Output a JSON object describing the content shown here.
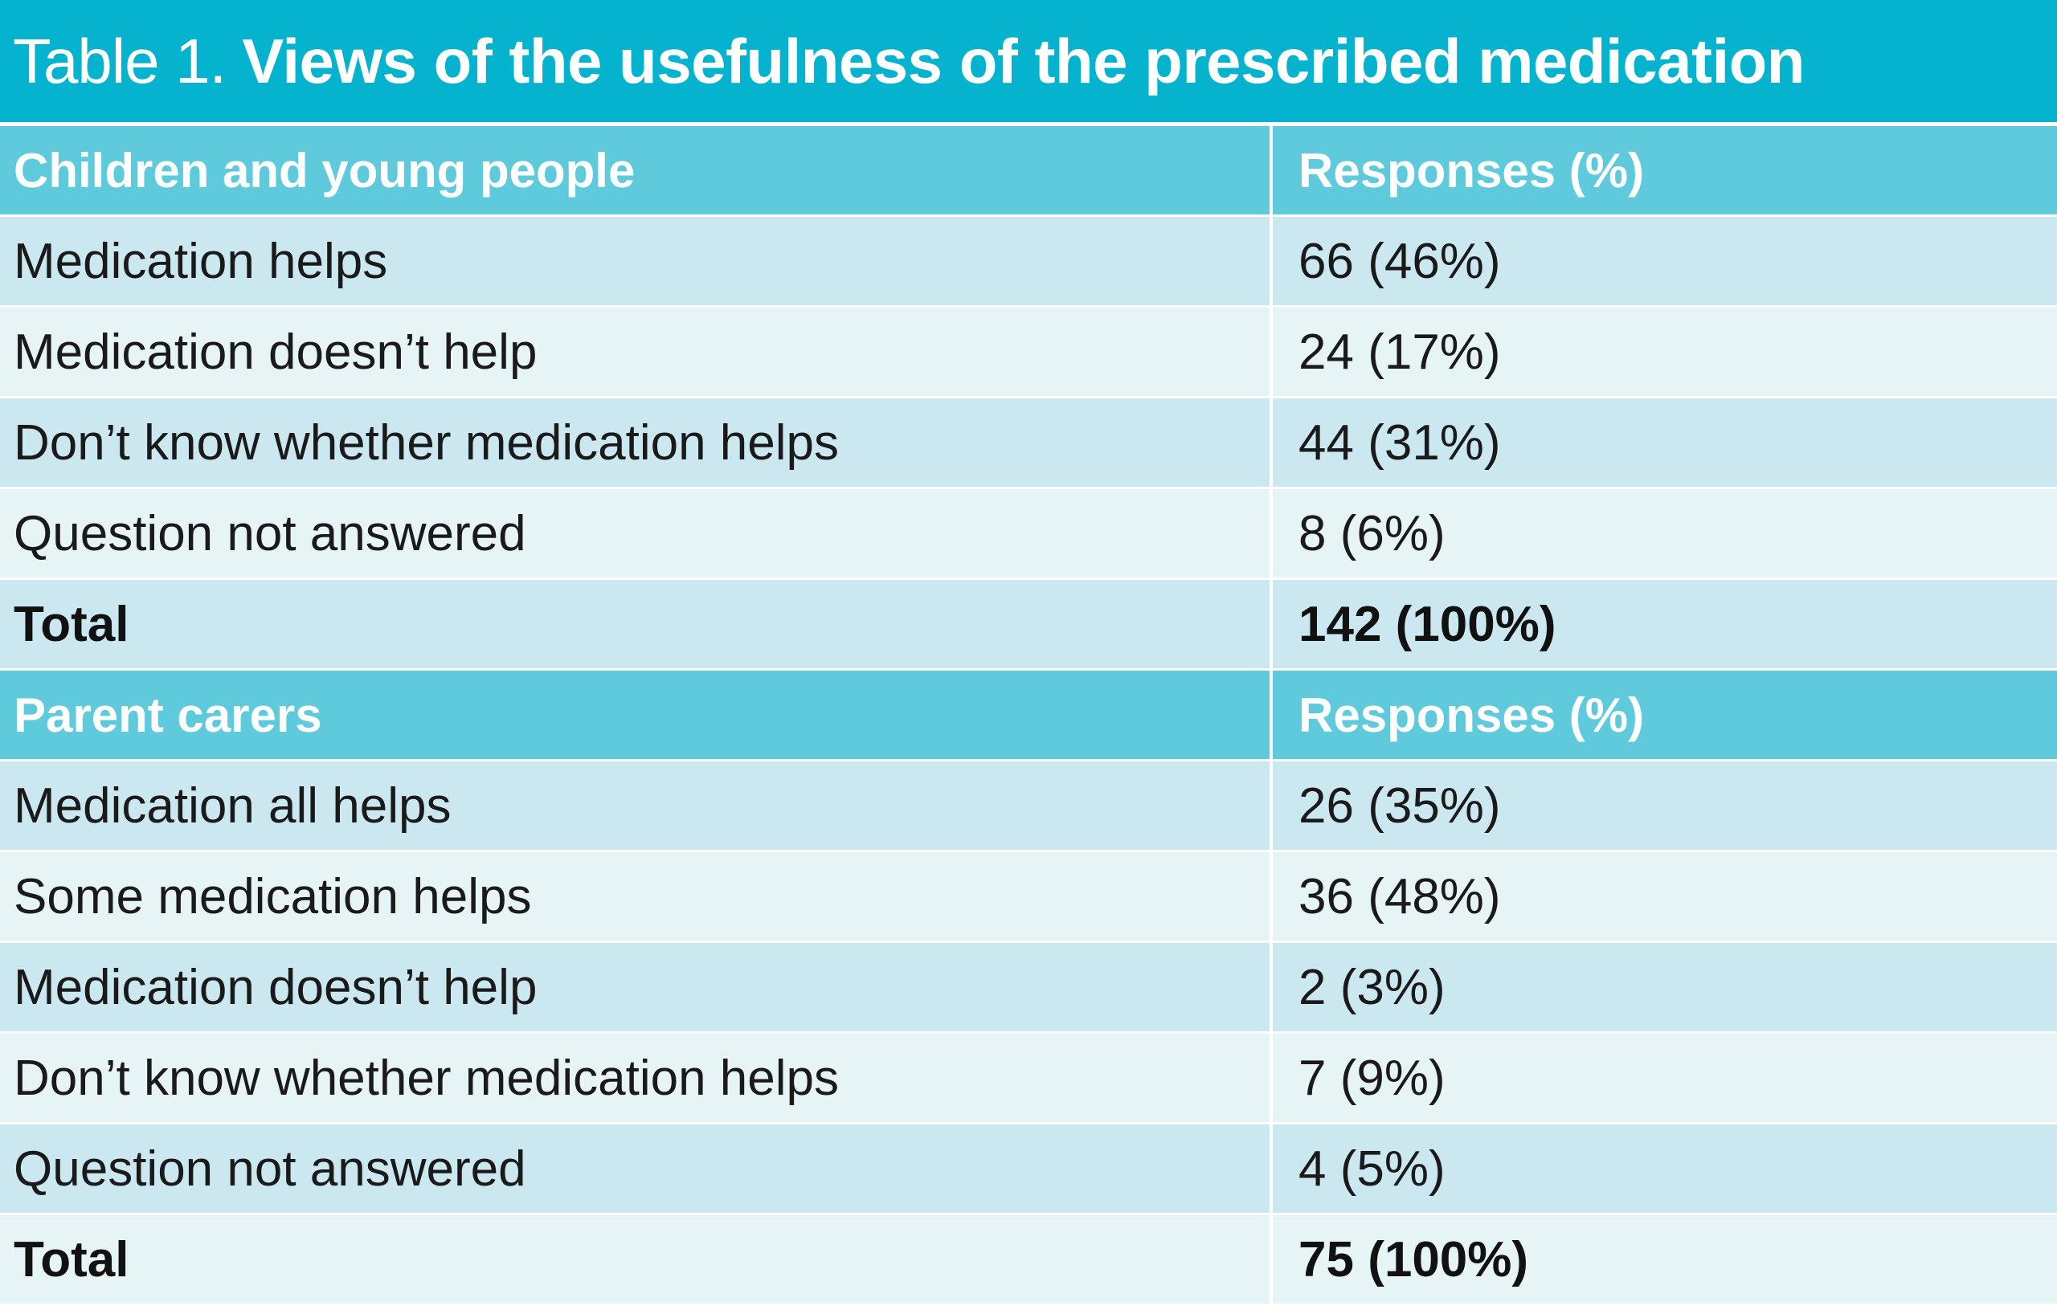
{
  "title": {
    "prefix": "Table 1.",
    "main": "Views of the usefulness of the prescribed medication"
  },
  "sections": [
    {
      "header": "Children and young people",
      "responses_header": "Responses (%)",
      "rows": [
        {
          "label": "Medication helps",
          "value": "66 (46%)"
        },
        {
          "label": "Medication doesn’t help",
          "value": "24 (17%)"
        },
        {
          "label": "Don’t know whether medication helps",
          "value": "44 (31%)"
        },
        {
          "label": "Question not answered",
          "value": "8 (6%)"
        }
      ],
      "total": {
        "label": "Total",
        "value": "142 (100%)"
      }
    },
    {
      "header": "Parent carers",
      "responses_header": "Responses (%)",
      "rows": [
        {
          "label": "Medication all helps",
          "value": "26 (35%)"
        },
        {
          "label": "Some medication helps",
          "value": "36 (48%)"
        },
        {
          "label": "Medication doesn’t help",
          "value": "2 (3%)"
        },
        {
          "label": "Don’t know whether medication helps",
          "value": "7 (9%)"
        },
        {
          "label": "Question not answered",
          "value": "4 (5%)"
        }
      ],
      "total": {
        "label": "Total",
        "value": "75 (100%)"
      }
    }
  ]
}
